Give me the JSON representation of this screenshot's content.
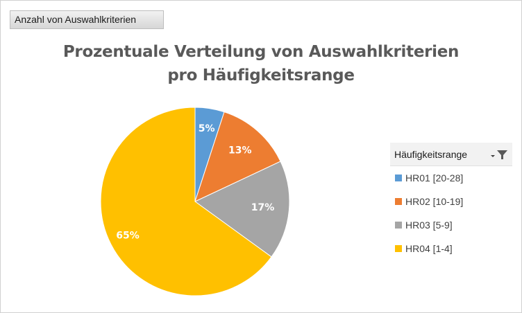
{
  "field_button_label": "Anzahl von Auswahlkriterien",
  "chart_data": {
    "type": "pie",
    "title_line1": "Prozentuale Verteilung von Auswahlkriterien",
    "title_line2": "pro Häufigkeitsrange",
    "categories": [
      "HR01 [20-28]",
      "HR02 [10-19]",
      "HR03 [5-9]",
      "HR04 [1-4]"
    ],
    "values": [
      5,
      13,
      17,
      65
    ],
    "labels": [
      "5%",
      "13%",
      "17%",
      "65%"
    ],
    "colors": [
      "#5b9bd5",
      "#ed7d31",
      "#a5a5a5",
      "#ffc000"
    ],
    "legend_title": "Häufigkeitsrange",
    "legend_position": "right"
  }
}
